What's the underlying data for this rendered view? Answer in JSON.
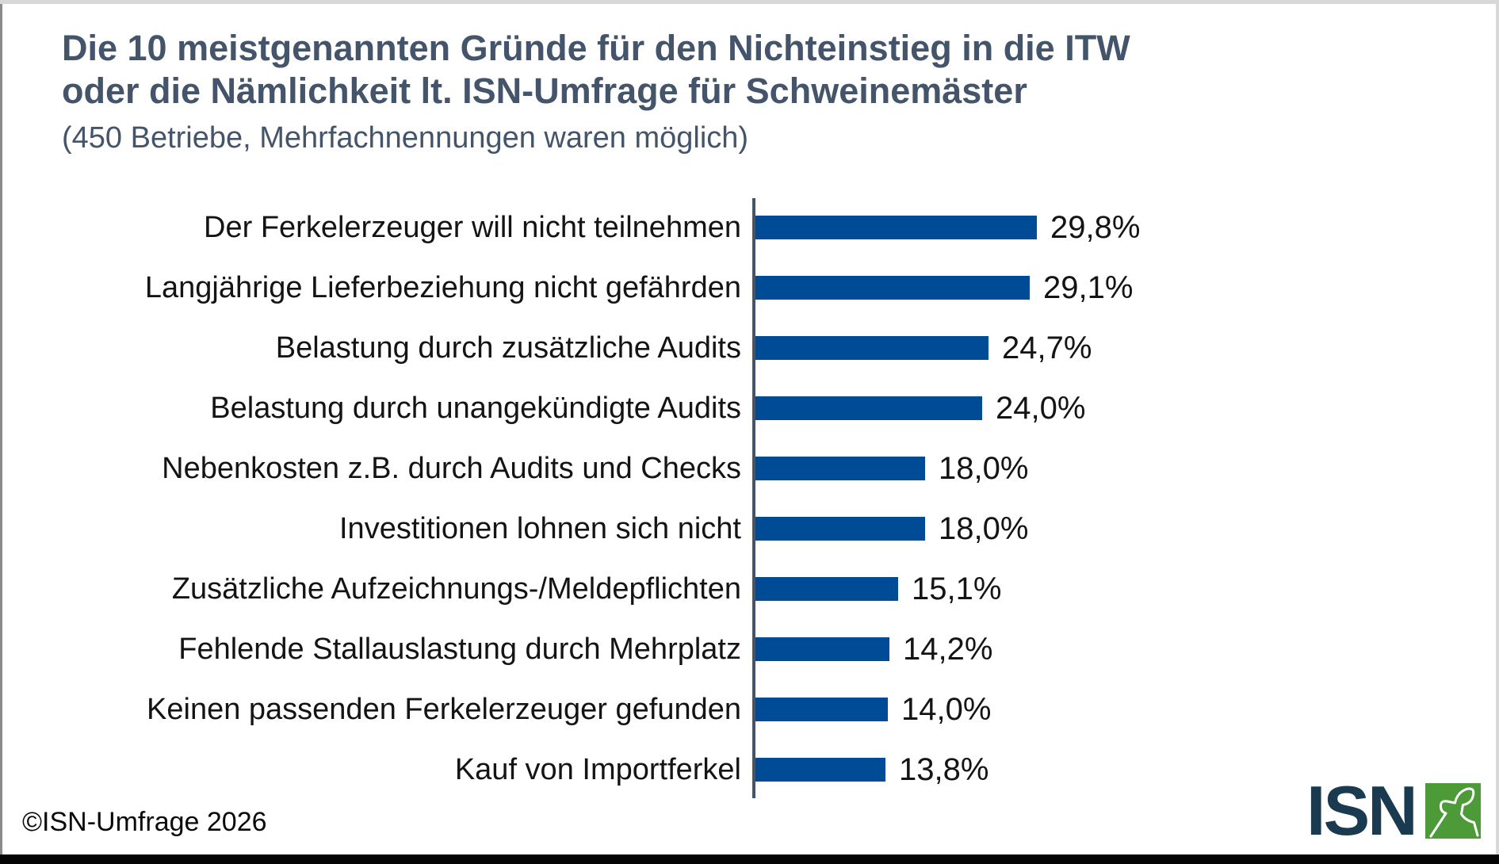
{
  "header": {
    "title_line1": "Die 10 meistgenannten Gründe für den Nichteinstieg in die ITW",
    "title_line2": "oder die Nämlichkeit lt. ISN-Umfrage für Schweinemäster",
    "subtitle": "(450 Betriebe, Mehrfachnennungen waren möglich)"
  },
  "chart_data": {
    "type": "bar",
    "orientation": "horizontal",
    "title": "Die 10 meistgenannten Gründe für den Nichteinstieg in die ITW oder die Nämlichkeit lt. ISN-Umfrage für Schweinemäster",
    "subtitle": "(450 Betriebe, Mehrfachnennungen waren möglich)",
    "categories": [
      "Der Ferkelerzeuger will nicht teilnehmen",
      "Langjährige Lieferbeziehung nicht gefährden",
      "Belastung durch zusätzliche Audits",
      "Belastung durch unangekündigte Audits",
      "Nebenkosten z.B. durch Audits und Checks",
      "Investitionen lohnen sich nicht",
      "Zusätzliche Aufzeichnungs-/Meldepflichten",
      "Fehlende Stallauslastung durch Mehrplatz",
      "Keinen passenden Ferkelerzeuger gefunden",
      "Kauf von Importferkel"
    ],
    "values": [
      29.8,
      29.1,
      24.7,
      24.0,
      18.0,
      18.0,
      15.1,
      14.2,
      14.0,
      13.8
    ],
    "value_labels": [
      "29,8%",
      "29,1%",
      "24,7%",
      "24,0%",
      "18,0%",
      "18,0%",
      "15,1%",
      "14,2%",
      "14,0%",
      "13,8%"
    ],
    "xlabel": "",
    "ylabel": "",
    "xlim": [
      0,
      33
    ],
    "grid": false,
    "legend": false,
    "bar_color": "#004B95",
    "axis_color": "#44546A"
  },
  "footer": {
    "copyright": "©ISN-Umfrage 2026"
  },
  "logo": {
    "text": "ISN",
    "icon": "pig-head-outline",
    "text_color": "#1A3B4F",
    "square_color": "#4D9A39"
  },
  "colors": {
    "title": "#44546A",
    "bar": "#004B95",
    "axis": "#44546A",
    "label_text": "#141414",
    "background": "#FFFFFF"
  }
}
